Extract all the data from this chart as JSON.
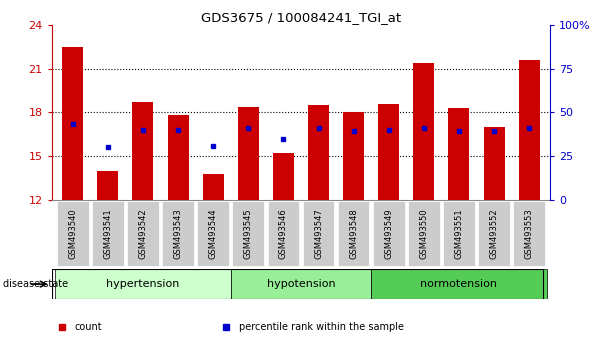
{
  "title": "GDS3675 / 100084241_TGI_at",
  "samples": [
    "GSM493540",
    "GSM493541",
    "GSM493542",
    "GSM493543",
    "GSM493544",
    "GSM493545",
    "GSM493546",
    "GSM493547",
    "GSM493548",
    "GSM493549",
    "GSM493550",
    "GSM493551",
    "GSM493552",
    "GSM493553"
  ],
  "bar_heights": [
    22.5,
    14.0,
    18.7,
    17.8,
    13.8,
    18.4,
    15.2,
    18.5,
    18.0,
    18.6,
    21.4,
    18.3,
    17.0,
    21.6
  ],
  "bar_base": 12,
  "percentile_values": [
    17.2,
    15.6,
    16.8,
    16.8,
    15.7,
    16.9,
    16.2,
    16.9,
    16.7,
    16.8,
    16.9,
    16.7,
    16.7,
    16.9
  ],
  "bar_color": "#cc0000",
  "dot_color": "#0000cc",
  "ylim_left": [
    12,
    24
  ],
  "ylim_right": [
    0,
    100
  ],
  "yticks_left": [
    12,
    15,
    18,
    21,
    24
  ],
  "yticks_right": [
    0,
    25,
    50,
    75,
    100
  ],
  "yticklabels_right": [
    "0",
    "25",
    "50",
    "75",
    "100%"
  ],
  "groups": [
    {
      "label": "hypertension",
      "indices": [
        0,
        1,
        2,
        3,
        4
      ],
      "color": "#ccffcc"
    },
    {
      "label": "hypotension",
      "indices": [
        5,
        6,
        7,
        8
      ],
      "color": "#99ee99"
    },
    {
      "label": "normotension",
      "indices": [
        9,
        10,
        11,
        12,
        13
      ],
      "color": "#55cc55"
    }
  ],
  "disease_state_label": "disease state",
  "legend_items": [
    {
      "label": "count",
      "color": "#cc0000"
    },
    {
      "label": "percentile rank within the sample",
      "color": "#0000cc"
    }
  ],
  "bar_width": 0.6,
  "background_color": "#ffffff",
  "tick_color_left": "#cc0000",
  "tick_color_right": "#0000cc",
  "xtick_bg": "#cccccc"
}
